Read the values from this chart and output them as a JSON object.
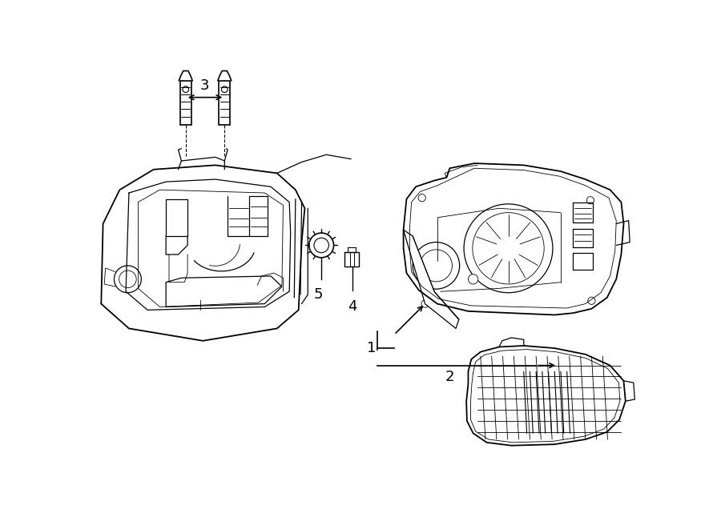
{
  "background_color": "#ffffff",
  "line_color": "#000000",
  "fig_width": 9.0,
  "fig_height": 6.61,
  "dpi": 100,
  "label_fontsize": 13,
  "lw_main": 1.3,
  "lw_inner": 0.9,
  "lw_thin": 0.6
}
